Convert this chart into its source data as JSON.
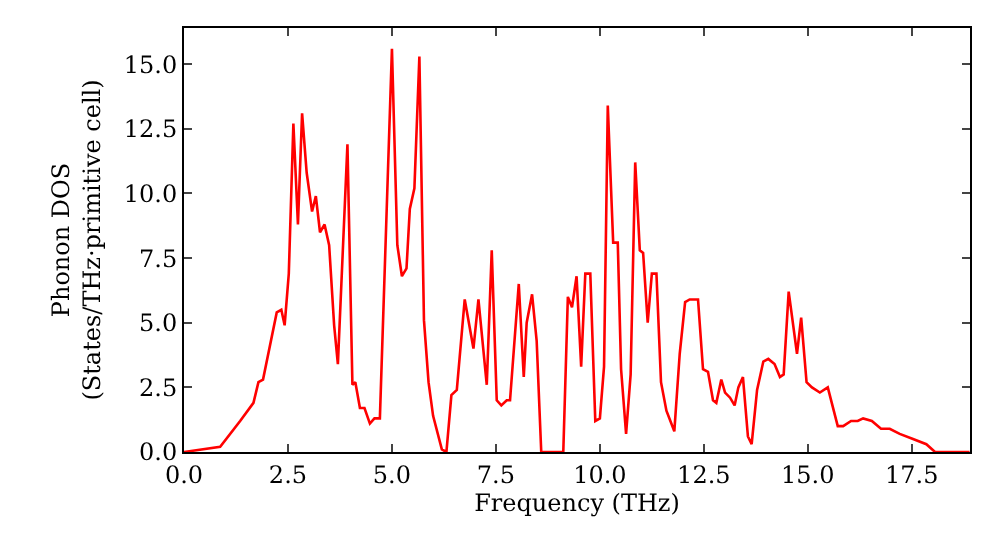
{
  "chart_data": {
    "type": "line",
    "xlabel": "Frequency (THz)",
    "ylabel": "Phonon DOS\n(States/THz·primitive cell)",
    "xlim": [
      0,
      18.9
    ],
    "ylim": [
      0,
      16.4
    ],
    "xticks": [
      {
        "value": 0,
        "label": "0.0"
      },
      {
        "value": 2.5,
        "label": "2.5"
      },
      {
        "value": 5,
        "label": "5.0"
      },
      {
        "value": 7.5,
        "label": "7.5"
      },
      {
        "value": 10,
        "label": "10.0"
      },
      {
        "value": 12.5,
        "label": "12.5"
      },
      {
        "value": 15,
        "label": "15.0"
      },
      {
        "value": 17.5,
        "label": "17.5"
      }
    ],
    "yticks": [
      {
        "value": 0,
        "label": "0.0"
      },
      {
        "value": 2.5,
        "label": "2.5"
      },
      {
        "value": 5,
        "label": "5.0"
      },
      {
        "value": 7.5,
        "label": "7.5"
      },
      {
        "value": 10,
        "label": "10.0"
      },
      {
        "value": 12.5,
        "label": "12.5"
      },
      {
        "value": 15,
        "label": "15.0"
      }
    ],
    "grid": false,
    "marker": "none",
    "line_style": "solid",
    "series": [
      {
        "color": "#ff0000",
        "x": [
          0,
          0.87,
          1.35,
          1.67,
          1.79,
          1.9,
          2.23,
          2.34,
          2.42,
          2.52,
          2.63,
          2.74,
          2.84,
          2.95,
          3.08,
          3.17,
          3.27,
          3.38,
          3.49,
          3.61,
          3.7,
          3.93,
          4.05,
          4.12,
          4.23,
          4.34,
          4.47,
          4.58,
          4.71,
          5.0,
          5.13,
          5.24,
          5.35,
          5.43,
          5.54,
          5.66,
          5.77,
          5.88,
          5.99,
          6.2,
          6.31,
          6.43,
          6.56,
          6.75,
          6.96,
          7.08,
          7.28,
          7.4,
          7.52,
          7.63,
          7.76,
          7.84,
          8.05,
          8.17,
          8.24,
          8.37,
          8.48,
          8.59,
          9.12,
          9.23,
          9.33,
          9.44,
          9.55,
          9.65,
          9.77,
          9.89,
          10.0,
          10.1,
          10.19,
          10.32,
          10.43,
          10.51,
          10.63,
          10.74,
          10.85,
          10.96,
          11.04,
          11.15,
          11.25,
          11.36,
          11.47,
          11.6,
          11.79,
          11.92,
          12.05,
          12.16,
          12.36,
          12.48,
          12.6,
          12.72,
          12.8,
          12.92,
          13.01,
          13.13,
          13.24,
          13.33,
          13.44,
          13.56,
          13.65,
          13.78,
          13.93,
          14.05,
          14.2,
          14.33,
          14.42,
          14.54,
          14.74,
          14.84,
          14.97,
          15.1,
          15.29,
          15.48,
          15.72,
          15.85,
          16.04,
          16.2,
          16.33,
          16.54,
          16.76,
          16.97,
          17.21,
          17.53,
          17.85,
          18.06,
          18.89
        ],
        "values": [
          0,
          0.2,
          1.2,
          1.9,
          2.7,
          2.8,
          5.4,
          5.5,
          4.9,
          6.9,
          12.7,
          8.8,
          13.1,
          10.8,
          9.3,
          9.9,
          8.5,
          8.8,
          8.0,
          4.9,
          3.4,
          11.9,
          2.6,
          2.7,
          1.7,
          1.7,
          1.1,
          1.3,
          1.3,
          15.6,
          8.0,
          6.8,
          7.1,
          9.4,
          10.2,
          15.3,
          5.1,
          2.7,
          1.4,
          0.1,
          0,
          2.2,
          2.4,
          5.9,
          4.0,
          5.9,
          2.6,
          7.8,
          2.0,
          1.8,
          2.0,
          2.0,
          6.5,
          2.9,
          5.0,
          6.1,
          4.3,
          0,
          0,
          6.0,
          5.6,
          6.8,
          3.3,
          6.9,
          6.9,
          1.2,
          1.3,
          3.3,
          13.4,
          8.1,
          8.1,
          3.2,
          0.7,
          3.0,
          11.2,
          7.8,
          7.7,
          5.0,
          6.9,
          6.9,
          2.7,
          1.6,
          0.8,
          3.8,
          5.8,
          5.9,
          5.9,
          3.2,
          3.1,
          2.0,
          1.9,
          2.8,
          2.3,
          2.1,
          1.8,
          2.5,
          2.9,
          0.6,
          0.3,
          2.4,
          3.5,
          3.6,
          3.4,
          2.9,
          3.0,
          6.2,
          3.8,
          5.2,
          2.7,
          2.5,
          2.3,
          2.5,
          1.0,
          1.0,
          1.2,
          1.2,
          1.3,
          1.2,
          0.9,
          0.9,
          0.7,
          0.5,
          0.3,
          0,
          0
        ]
      }
    ]
  }
}
